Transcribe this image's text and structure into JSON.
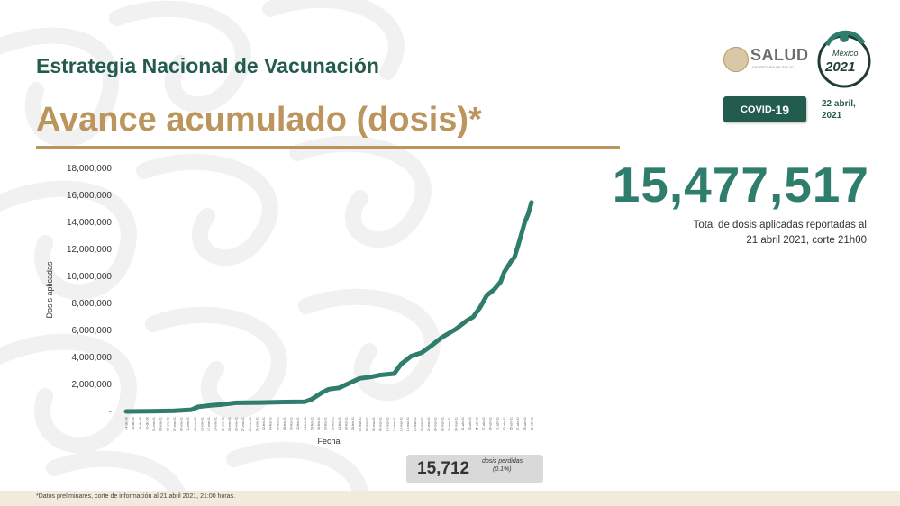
{
  "header": {
    "program_title": "Estrategia Nacional de Vacunación",
    "slide_title": "Avance acumulado (dosis)*"
  },
  "logos": {
    "salud": "SALUD",
    "salud_sub": "SECRETARÍA DE SALUD",
    "mexico": "México",
    "year": "2021"
  },
  "badge": {
    "covid_prefix": "COVID-",
    "covid_number": "19"
  },
  "date": {
    "line1": "22 abril,",
    "line2": "2021"
  },
  "total": {
    "value": "15,477,517",
    "caption_line1": "Total de dosis aplicadas reportadas al",
    "caption_line2": "21 abril 2021, corte 21h00"
  },
  "lost": {
    "value": "15,712",
    "label_line1": "dosis perdidas",
    "label_line2": "(0.1%)"
  },
  "footnote": "*Datos preliminares, corte de información al 21 abril 2021, 21:00 horas.",
  "colors": {
    "brand_green": "#235b4e",
    "line_green": "#2f7d6c",
    "gold": "#bc955c"
  },
  "chart_data": {
    "type": "line",
    "xlabel": "Fecha",
    "ylabel": "Dosis aplicadas",
    "ylim": [
      0,
      18000000
    ],
    "y_ticks": [
      "-",
      "2,000,000",
      "4,000,000",
      "6,000,000",
      "8,000,000",
      "10,000,000",
      "12,000,000",
      "14,000,000",
      "16,000,000",
      "18,000,000"
    ],
    "x_start": "2020-12-24",
    "x_end": "2021-04-21",
    "grid": false,
    "series": [
      {
        "values": [
          [
            "2020-12-24",
            3000
          ],
          [
            "2020-12-31",
            15000
          ],
          [
            "2021-01-07",
            50000
          ],
          [
            "2021-01-12",
            130000
          ],
          [
            "2021-01-14",
            350000
          ],
          [
            "2021-01-18",
            460000
          ],
          [
            "2021-01-21",
            520000
          ],
          [
            "2021-01-25",
            640000
          ],
          [
            "2021-02-01",
            660000
          ],
          [
            "2021-02-08",
            700000
          ],
          [
            "2021-02-14",
            720000
          ],
          [
            "2021-02-16",
            900000
          ],
          [
            "2021-02-19",
            1400000
          ],
          [
            "2021-02-21",
            1650000
          ],
          [
            "2021-02-24",
            1750000
          ],
          [
            "2021-02-27",
            2100000
          ],
          [
            "2021-03-02",
            2450000
          ],
          [
            "2021-03-05",
            2550000
          ],
          [
            "2021-03-08",
            2700000
          ],
          [
            "2021-03-12",
            2800000
          ],
          [
            "2021-03-14",
            3500000
          ],
          [
            "2021-03-17",
            4100000
          ],
          [
            "2021-03-20",
            4350000
          ],
          [
            "2021-03-23",
            4900000
          ],
          [
            "2021-03-26",
            5500000
          ],
          [
            "2021-03-30",
            6100000
          ],
          [
            "2021-04-02",
            6700000
          ],
          [
            "2021-04-04",
            7000000
          ],
          [
            "2021-04-06",
            7700000
          ],
          [
            "2021-04-08",
            8600000
          ],
          [
            "2021-04-10",
            9000000
          ],
          [
            "2021-04-12",
            9600000
          ],
          [
            "2021-04-13",
            10300000
          ],
          [
            "2021-04-15",
            11100000
          ],
          [
            "2021-04-16",
            11400000
          ],
          [
            "2021-04-17",
            12200000
          ],
          [
            "2021-04-18",
            13100000
          ],
          [
            "2021-04-19",
            14000000
          ],
          [
            "2021-04-20",
            14600000
          ],
          [
            "2021-04-21",
            15477517
          ]
        ]
      }
    ]
  }
}
